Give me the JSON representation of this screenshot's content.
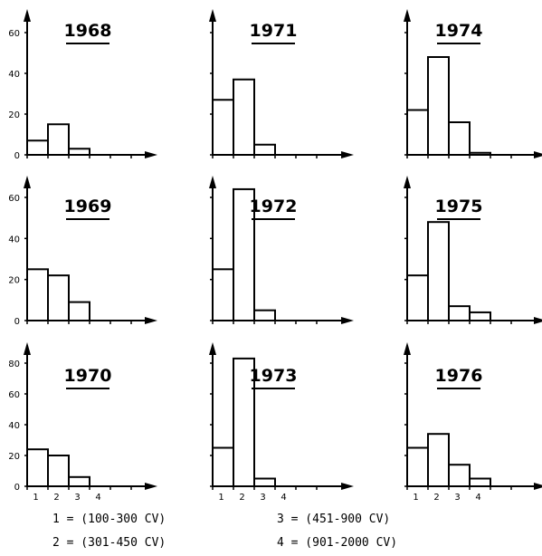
{
  "chart_data": [
    {
      "type": "bar",
      "title": "1968",
      "categories": [
        "1",
        "2",
        "3",
        "4"
      ],
      "values": [
        7,
        15,
        3,
        0
      ],
      "ylim": [
        0,
        70
      ],
      "yticks": [
        0,
        20,
        40,
        60
      ]
    },
    {
      "type": "bar",
      "title": "1971",
      "categories": [
        "1",
        "2",
        "3",
        "4"
      ],
      "values": [
        27,
        37,
        5,
        0
      ],
      "ylim": [
        0,
        70
      ],
      "yticks": [
        0,
        20,
        40,
        60
      ]
    },
    {
      "type": "bar",
      "title": "1974",
      "categories": [
        "1",
        "2",
        "3",
        "4"
      ],
      "values": [
        22,
        48,
        16,
        1
      ],
      "ylim": [
        0,
        70
      ],
      "yticks": [
        0,
        20,
        40,
        60
      ]
    },
    {
      "type": "bar",
      "title": "1969",
      "categories": [
        "1",
        "2",
        "3",
        "4"
      ],
      "values": [
        25,
        22,
        9,
        0
      ],
      "ylim": [
        0,
        70
      ],
      "yticks": [
        0,
        20,
        40,
        60
      ]
    },
    {
      "type": "bar",
      "title": "1972",
      "categories": [
        "1",
        "2",
        "3",
        "4"
      ],
      "values": [
        25,
        64,
        5,
        0
      ],
      "ylim": [
        0,
        70
      ],
      "yticks": [
        0,
        20,
        40,
        60
      ]
    },
    {
      "type": "bar",
      "title": "1975",
      "categories": [
        "1",
        "2",
        "3",
        "4"
      ],
      "values": [
        22,
        48,
        7,
        4
      ],
      "ylim": [
        0,
        70
      ],
      "yticks": [
        0,
        20,
        40,
        60
      ]
    },
    {
      "type": "bar",
      "title": "1970",
      "categories": [
        "1",
        "2",
        "3",
        "4"
      ],
      "values": [
        24,
        20,
        6,
        0
      ],
      "ylim": [
        0,
        90
      ],
      "yticks": [
        0,
        20,
        40,
        60,
        80
      ]
    },
    {
      "type": "bar",
      "title": "1973",
      "categories": [
        "1",
        "2",
        "3",
        "4"
      ],
      "values": [
        25,
        83,
        5,
        0
      ],
      "ylim": [
        0,
        90
      ],
      "yticks": [
        0,
        20,
        40,
        60,
        80
      ]
    },
    {
      "type": "bar",
      "title": "1976",
      "categories": [
        "1",
        "2",
        "3",
        "4"
      ],
      "values": [
        25,
        34,
        14,
        5
      ],
      "ylim": [
        0,
        90
      ],
      "yticks": [
        0,
        20,
        40,
        60,
        80
      ]
    }
  ],
  "legend": [
    "1 = (100-300 CV)",
    "2 = (301-450 CV)",
    "3 = (451-900 CV)",
    "4 = (901-2000 CV)"
  ]
}
